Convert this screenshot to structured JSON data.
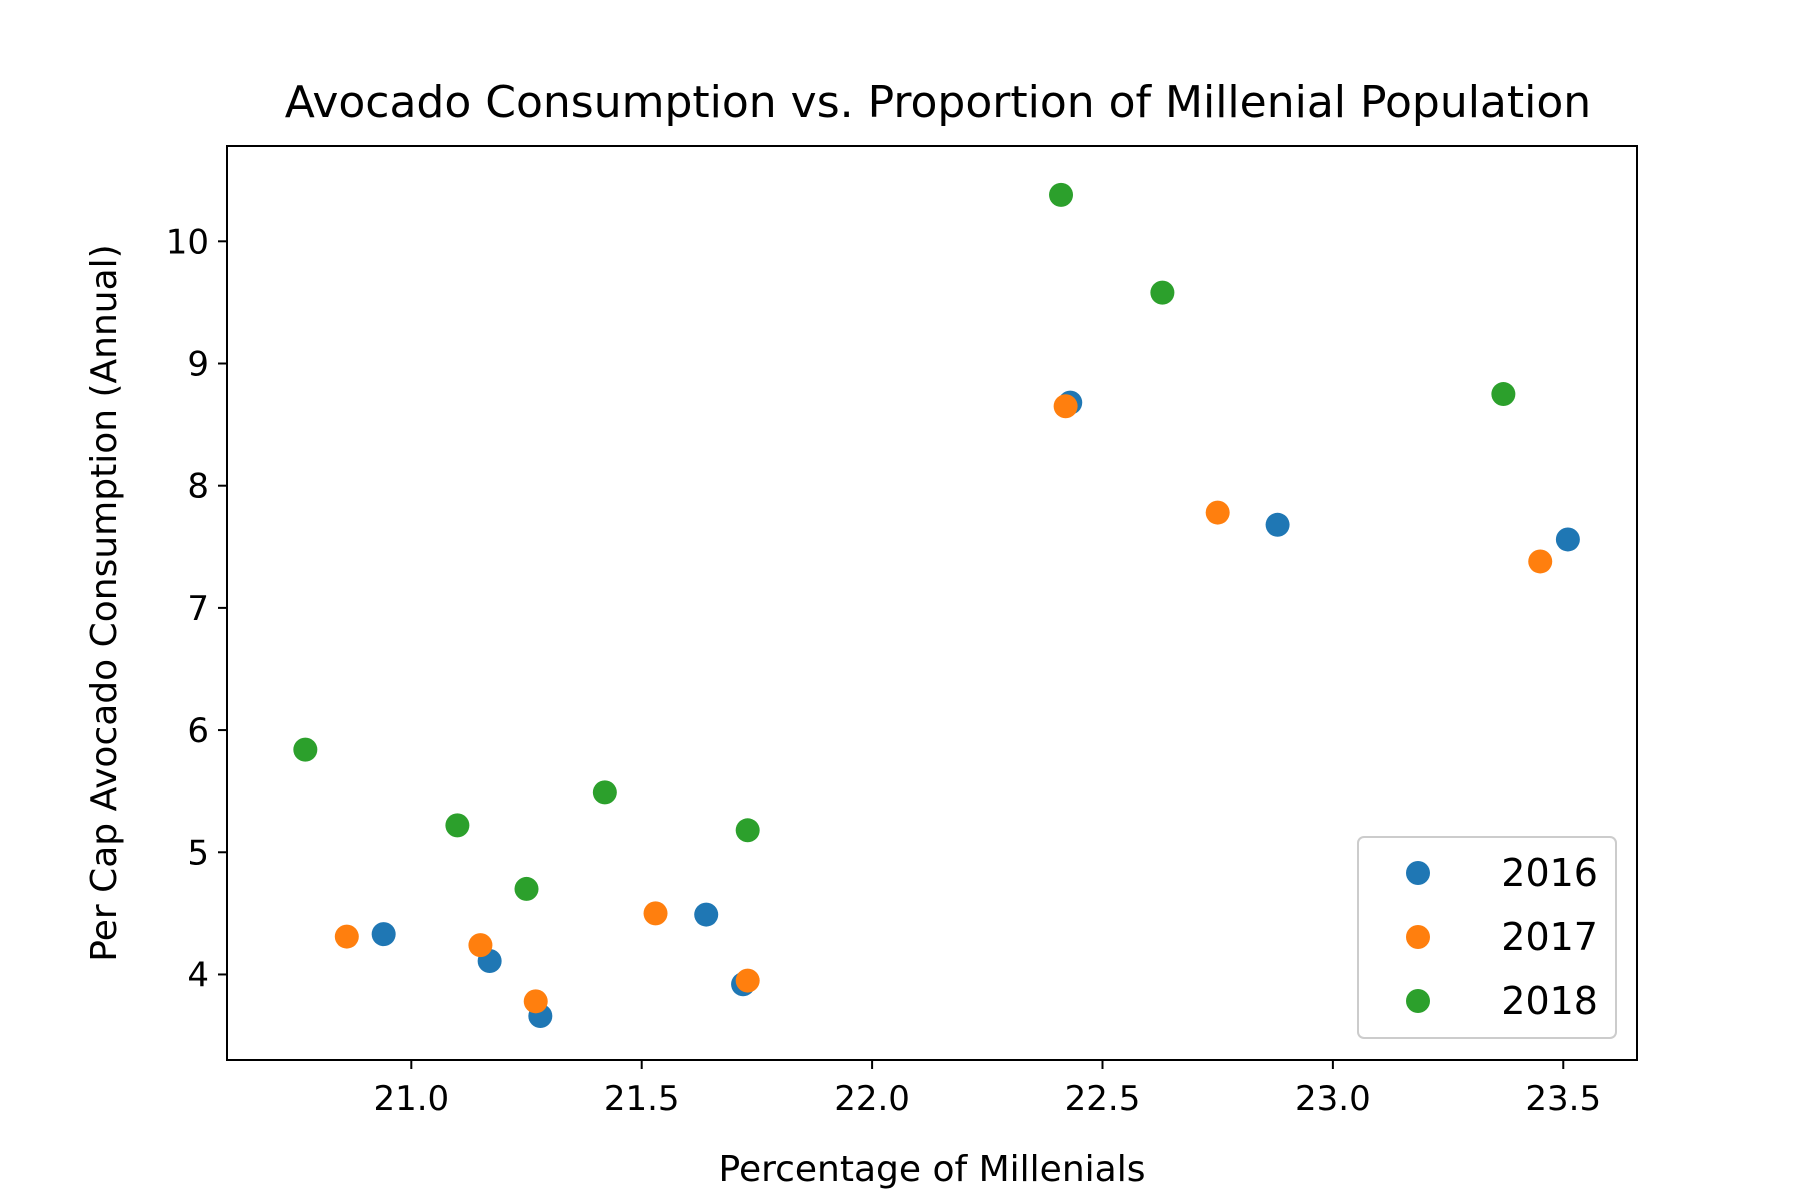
{
  "chart_data": {
    "type": "scatter",
    "title": "Avocado Consumption vs. Proportion of Millenial Population",
    "xlabel": "Percentage of Millenials",
    "ylabel": "Per Cap Avocado Consumption (Annual)",
    "xlim": [
      20.6,
      23.66
    ],
    "ylim": [
      3.3,
      10.78
    ],
    "xticks": [
      21.0,
      21.5,
      22.0,
      22.5,
      23.0,
      23.5
    ],
    "xtick_labels": [
      "21.0",
      "21.5",
      "22.0",
      "22.5",
      "23.0",
      "23.5"
    ],
    "yticks": [
      4,
      5,
      6,
      7,
      8,
      9,
      10
    ],
    "ytick_labels": [
      "4",
      "5",
      "6",
      "7",
      "8",
      "9",
      "10"
    ],
    "grid": false,
    "legend_position": "lower-right",
    "series": [
      {
        "name": "2016",
        "color": "#1f77b4",
        "points": [
          {
            "x": 20.94,
            "y": 4.33
          },
          {
            "x": 21.17,
            "y": 4.11
          },
          {
            "x": 21.28,
            "y": 3.66
          },
          {
            "x": 21.64,
            "y": 4.49
          },
          {
            "x": 21.72,
            "y": 3.92
          },
          {
            "x": 22.43,
            "y": 8.68
          },
          {
            "x": 22.88,
            "y": 7.68
          },
          {
            "x": 23.51,
            "y": 7.56
          }
        ]
      },
      {
        "name": "2017",
        "color": "#ff7f0e",
        "points": [
          {
            "x": 20.86,
            "y": 4.31
          },
          {
            "x": 21.15,
            "y": 4.24
          },
          {
            "x": 21.27,
            "y": 3.78
          },
          {
            "x": 21.53,
            "y": 4.5
          },
          {
            "x": 21.73,
            "y": 3.95
          },
          {
            "x": 22.42,
            "y": 8.65
          },
          {
            "x": 22.75,
            "y": 7.78
          },
          {
            "x": 23.45,
            "y": 7.38
          }
        ]
      },
      {
        "name": "2018",
        "color": "#2ca02c",
        "points": [
          {
            "x": 20.77,
            "y": 5.84
          },
          {
            "x": 21.1,
            "y": 5.22
          },
          {
            "x": 21.25,
            "y": 4.7
          },
          {
            "x": 21.42,
            "y": 5.49
          },
          {
            "x": 21.73,
            "y": 5.18
          },
          {
            "x": 22.41,
            "y": 10.38
          },
          {
            "x": 22.63,
            "y": 9.58
          },
          {
            "x": 23.37,
            "y": 8.75
          }
        ]
      }
    ]
  }
}
